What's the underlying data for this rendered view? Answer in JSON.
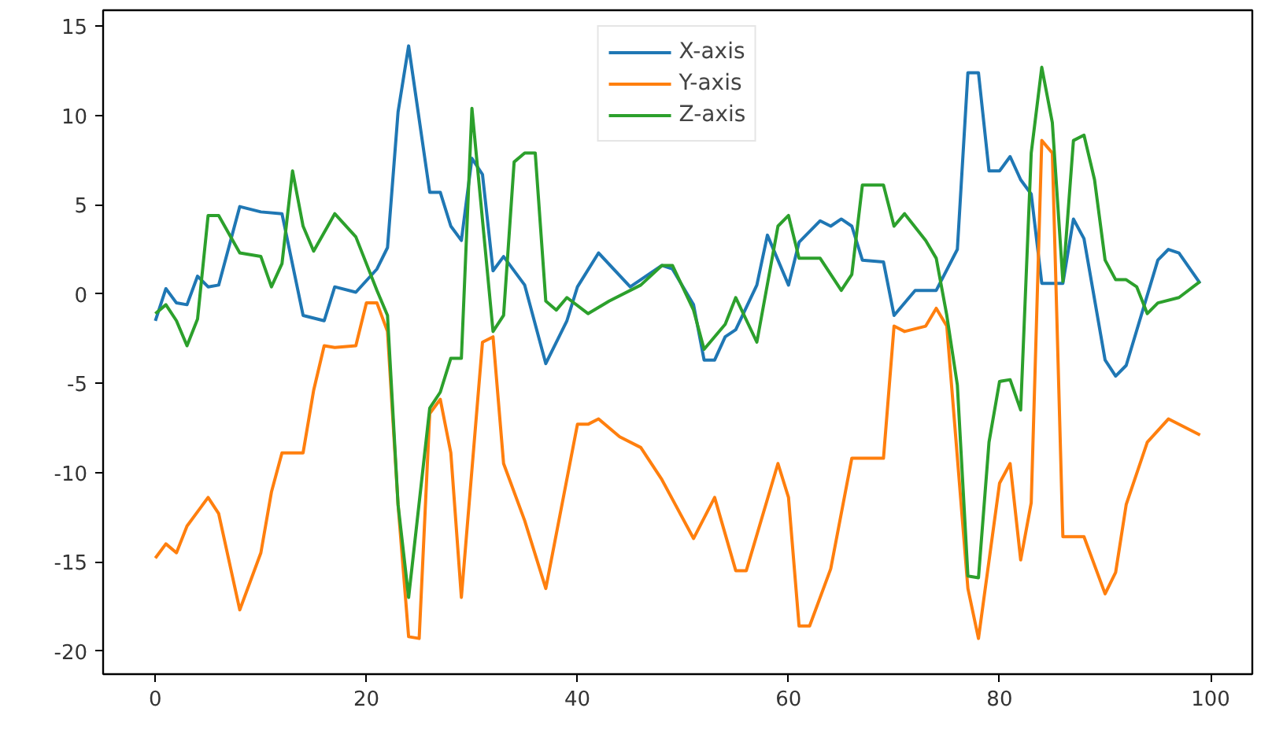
{
  "chart_data": {
    "type": "line",
    "xlim": [
      -4.95,
      103.95
    ],
    "ylim": [
      -21.3,
      15.9
    ],
    "xticks": [
      0,
      20,
      40,
      60,
      80,
      100
    ],
    "yticks": [
      -20,
      -15,
      -10,
      -5,
      0,
      5,
      10,
      15
    ],
    "grid": false,
    "legend": "top",
    "line_style": "solid",
    "marker": "none",
    "series": [
      {
        "name": "X-axis",
        "color": "#1f77b4",
        "x": [
          0,
          1,
          2,
          3,
          4,
          5,
          6,
          8,
          10,
          12,
          14,
          16,
          17,
          19,
          21,
          22,
          23,
          24,
          26,
          27,
          28,
          29,
          30,
          31,
          32,
          33,
          35,
          37,
          39,
          40,
          42,
          45,
          48,
          49,
          51,
          52,
          53,
          54,
          55,
          57,
          58,
          60,
          61,
          63,
          64,
          65,
          66,
          67,
          69,
          70,
          72,
          74,
          76,
          77,
          78,
          79,
          80,
          81,
          82,
          83,
          84,
          86,
          87,
          88,
          90,
          91,
          92,
          95,
          96,
          97,
          99
        ],
        "values": [
          -1.5,
          0.3,
          -0.5,
          -0.6,
          1.0,
          0.4,
          0.5,
          4.9,
          4.6,
          4.5,
          -1.2,
          -1.5,
          0.4,
          0.1,
          1.4,
          2.6,
          10.2,
          13.9,
          5.7,
          5.7,
          3.8,
          3.0,
          7.6,
          6.7,
          1.3,
          2.1,
          0.5,
          -3.9,
          -1.5,
          0.4,
          2.3,
          0.4,
          1.6,
          1.4,
          -0.6,
          -3.7,
          -3.7,
          -2.4,
          -2.0,
          0.5,
          3.3,
          0.5,
          2.9,
          4.1,
          3.8,
          4.2,
          3.8,
          1.9,
          1.8,
          -1.2,
          0.2,
          0.2,
          2.5,
          12.4,
          12.4,
          6.9,
          6.9,
          7.7,
          6.4,
          5.6,
          0.6,
          0.6,
          4.2,
          3.1,
          -3.7,
          -4.6,
          -4.0,
          1.9,
          2.5,
          2.3,
          0.6
        ]
      },
      {
        "name": "Y-axis",
        "color": "#ff7f0e",
        "x": [
          0,
          1,
          2,
          3,
          5,
          6,
          8,
          10,
          11,
          12,
          14,
          15,
          16,
          17,
          19,
          20,
          21,
          22,
          23,
          24,
          25,
          26,
          27,
          28,
          29,
          31,
          32,
          33,
          35,
          37,
          40,
          41,
          42,
          44,
          46,
          48,
          49,
          51,
          53,
          55,
          56,
          59,
          60,
          61,
          62,
          64,
          66,
          67,
          69,
          70,
          71,
          73,
          74,
          75,
          77,
          78,
          80,
          81,
          82,
          83,
          84,
          85,
          86,
          88,
          90,
          91,
          92,
          94,
          96,
          99
        ],
        "values": [
          -14.8,
          -14.0,
          -14.5,
          -13.0,
          -11.4,
          -12.3,
          -17.7,
          -14.5,
          -11.1,
          -8.9,
          -8.9,
          -5.4,
          -2.9,
          -3.0,
          -2.9,
          -0.5,
          -0.5,
          -2.1,
          -11.8,
          -19.2,
          -19.3,
          -6.7,
          -5.9,
          -8.9,
          -17.0,
          -2.7,
          -2.4,
          -9.5,
          -12.7,
          -16.5,
          -7.3,
          -7.3,
          -7.0,
          -8.0,
          -8.6,
          -10.4,
          -11.5,
          -13.7,
          -11.4,
          -15.5,
          -15.5,
          -9.5,
          -11.4,
          -18.6,
          -18.6,
          -15.4,
          -9.2,
          -9.2,
          -9.2,
          -1.8,
          -2.1,
          -1.8,
          -0.8,
          -1.8,
          -16.5,
          -19.3,
          -10.6,
          -9.5,
          -14.9,
          -11.7,
          8.6,
          7.9,
          -13.6,
          -13.6,
          -16.8,
          -15.6,
          -11.8,
          -8.3,
          -7.0,
          -7.9
        ]
      },
      {
        "name": "Z-axis",
        "color": "#2ca02c",
        "x": [
          0,
          1,
          2,
          3,
          4,
          5,
          6,
          8,
          10,
          11,
          12,
          13,
          14,
          15,
          17,
          19,
          21,
          22,
          23,
          24,
          26,
          27,
          28,
          29,
          30,
          32,
          33,
          34,
          35,
          36,
          37,
          38,
          39,
          41,
          43,
          46,
          48,
          49,
          51,
          52,
          54,
          55,
          57,
          59,
          60,
          61,
          63,
          65,
          66,
          67,
          69,
          70,
          71,
          73,
          74,
          75,
          76,
          77,
          78,
          79,
          80,
          81,
          82,
          83,
          84,
          85,
          86,
          87,
          88,
          89,
          90,
          91,
          92,
          93,
          94,
          95,
          97,
          99
        ],
        "values": [
          -1.1,
          -0.6,
          -1.5,
          -2.9,
          -1.4,
          4.4,
          4.4,
          2.3,
          2.1,
          0.4,
          1.7,
          6.9,
          3.8,
          2.4,
          4.5,
          3.2,
          0.2,
          -1.2,
          -11.8,
          -17.0,
          -6.4,
          -5.5,
          -3.6,
          -3.6,
          10.4,
          -2.1,
          -1.2,
          7.4,
          7.9,
          7.9,
          -0.4,
          -0.9,
          -0.2,
          -1.1,
          -0.4,
          0.5,
          1.6,
          1.6,
          -0.9,
          -3.1,
          -1.7,
          -0.2,
          -2.7,
          3.8,
          4.4,
          2.0,
          2.0,
          0.2,
          1.1,
          6.1,
          6.1,
          3.8,
          4.5,
          3.0,
          2.0,
          -1.2,
          -5.1,
          -15.8,
          -15.9,
          -8.3,
          -4.9,
          -4.8,
          -6.5,
          7.9,
          12.7,
          9.6,
          0.7,
          8.6,
          8.9,
          6.4,
          1.9,
          0.8,
          0.8,
          0.4,
          -1.1,
          -0.5,
          -0.2,
          0.7
        ]
      }
    ]
  }
}
